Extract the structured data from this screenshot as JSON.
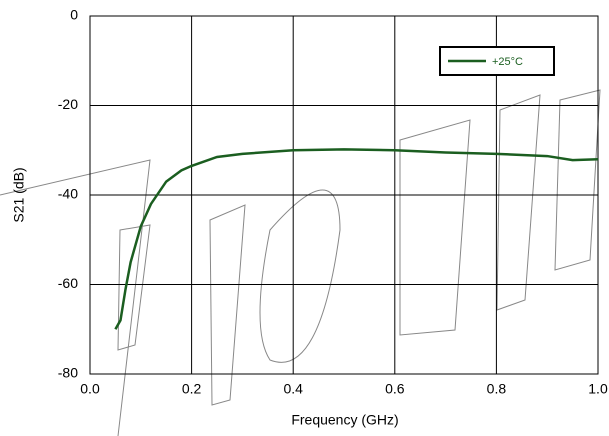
{
  "chart_data": {
    "type": "line",
    "xlabel": "Frequency (GHz)",
    "ylabel": "S21 (dB)",
    "x": [
      0.05,
      0.06,
      0.07,
      0.08,
      0.1,
      0.12,
      0.15,
      0.18,
      0.2,
      0.25,
      0.3,
      0.4,
      0.5,
      0.6,
      0.7,
      0.8,
      0.9,
      0.95,
      1.0
    ],
    "series": [
      {
        "name": "+25°C",
        "color": "#1b5e20",
        "values": [
          -70,
          -68,
          -61,
          -55,
          -47,
          -42,
          -37,
          -34.5,
          -33.5,
          -31.5,
          -30.8,
          -30,
          -29.8,
          -30,
          -30.5,
          -30.8,
          -31.3,
          -32.2,
          -32
        ]
      }
    ],
    "xlim": [
      0,
      1
    ],
    "xticks": [
      {
        "value": 0,
        "label": "0.0"
      },
      0.2,
      0.4,
      0.6,
      0.8,
      {
        "value": 1,
        "label": "1.0"
      }
    ],
    "ylim": [
      -80,
      0
    ],
    "yticks": [
      -80,
      -60,
      -40,
      -20,
      0
    ],
    "grid": true,
    "legend": "upper right"
  }
}
